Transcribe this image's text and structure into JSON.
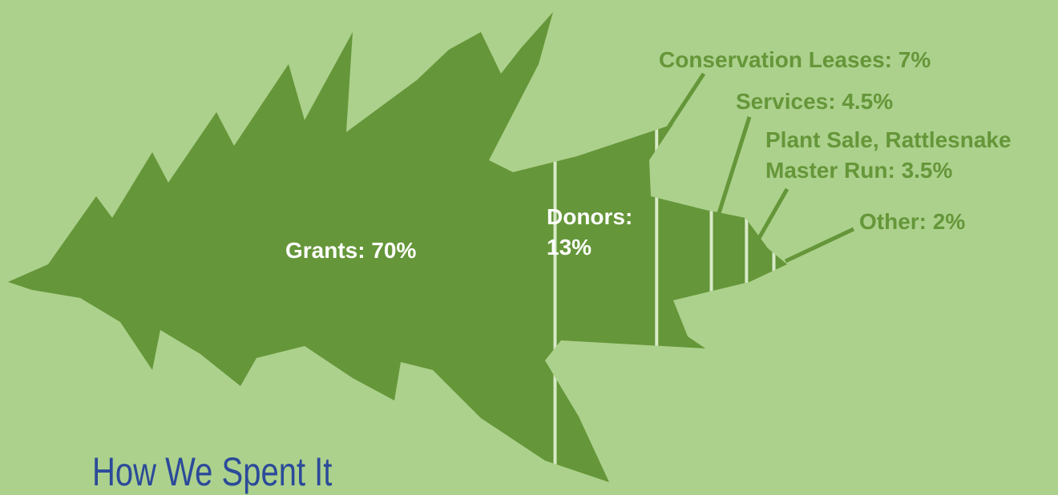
{
  "chart_data": {
    "type": "leaf",
    "title": "How We Spent It",
    "values": [
      70,
      13,
      7,
      4.5,
      3.5,
      2
    ],
    "value_labels": [
      "Grants: 70%",
      "Donors: 13%",
      "Conservation Leases: 7%",
      "Services: 4.5%",
      "Plant Sale, Rattlesnake Master Run: 3.5%",
      "Other: 2%"
    ],
    "color": "#659639"
  }
}
